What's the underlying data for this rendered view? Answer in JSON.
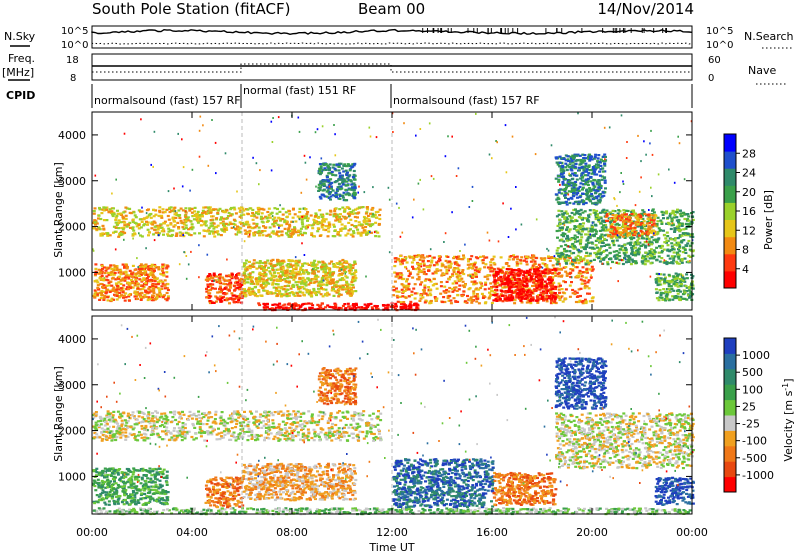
{
  "header": {
    "station": "South Pole Station (fitACF)",
    "beam": "Beam 00",
    "date": "14/Nov/2014"
  },
  "labels": {
    "nsky": "N.Sky",
    "nsky_tick_top": "10^5",
    "nsky_tick_bottom": "10^0",
    "nsearch": "N.Search",
    "nsearch_tick_top": "10^5",
    "nsearch_tick_bottom": "10^0",
    "freq": "Freq.",
    "freq_unit": "[MHz]",
    "freq_tick_top": "18",
    "freq_tick_bottom": "8",
    "nave": "Nave",
    "nave_tick_top": "60",
    "nave_tick_bottom": "0",
    "cpid": "CPID",
    "x_title": "Time UT"
  },
  "cpid_segments": [
    {
      "start_hour": 0.0,
      "end_hour": 6.0,
      "label": "normalsound (fast) 157 RF"
    },
    {
      "start_hour": 6.0,
      "end_hour": 12.0,
      "label": "normal (fast) 151 RF"
    },
    {
      "start_hour": 12.0,
      "end_hour": 24.0,
      "label": "normalsound (fast) 157 RF"
    }
  ],
  "chart_data": [
    {
      "type": "heatmap",
      "name": "power-panel",
      "xlabel": "Time UT",
      "ylabel": "Slant Range [km]",
      "xlim": [
        0,
        24
      ],
      "ylim": [
        180,
        4500
      ],
      "x_ticks": [
        "00:00",
        "04:00",
        "08:00",
        "12:00",
        "16:00",
        "20:00",
        "00:00"
      ],
      "y_ticks": [
        1000,
        2000,
        3000,
        4000
      ],
      "colorbar": {
        "label": "Power [dB]",
        "ticks": [
          "4",
          "8",
          "12",
          "16",
          "20",
          "24",
          "28"
        ],
        "colors": [
          "#0000ff",
          "#1f4fcc",
          "#2f8a6a",
          "#3aa04a",
          "#9ad12b",
          "#e6c619",
          "#f28a12",
          "#ff3a10",
          "#ff0000"
        ]
      },
      "echo_regions": [
        {
          "t0": 0.0,
          "t1": 11.5,
          "r0": 1800,
          "r1": 2450,
          "level": 5,
          "note": "band near 2000 km"
        },
        {
          "t0": 0.0,
          "t1": 3.0,
          "r0": 400,
          "r1": 1200,
          "level": 6
        },
        {
          "t0": 4.5,
          "t1": 6.0,
          "r0": 350,
          "r1": 1000,
          "level": 7
        },
        {
          "t0": 6.0,
          "t1": 10.5,
          "r0": 500,
          "r1": 1300,
          "level": 5
        },
        {
          "t0": 9.0,
          "t1": 10.5,
          "r0": 2600,
          "r1": 3400,
          "level": 2
        },
        {
          "t0": 6.5,
          "t1": 13.0,
          "r0": 200,
          "r1": 350,
          "level": 8
        },
        {
          "t0": 12.0,
          "t1": 20.0,
          "r0": 350,
          "r1": 1400,
          "level": 6
        },
        {
          "t0": 16.0,
          "t1": 18.5,
          "r0": 400,
          "r1": 1100,
          "level": 8
        },
        {
          "t0": 18.5,
          "t1": 24.0,
          "r0": 1200,
          "r1": 2400,
          "level": 3
        },
        {
          "t0": 20.5,
          "t1": 22.5,
          "r0": 1800,
          "r1": 2300,
          "level": 6
        },
        {
          "t0": 18.5,
          "t1": 20.5,
          "r0": 2500,
          "r1": 3600,
          "level": 2
        },
        {
          "t0": 22.5,
          "t1": 24.0,
          "r0": 400,
          "r1": 1000,
          "level": 3
        }
      ]
    },
    {
      "type": "heatmap",
      "name": "velocity-panel",
      "xlabel": "Time UT",
      "ylabel": "Slant Range [km]",
      "xlim": [
        0,
        24
      ],
      "ylim": [
        180,
        4500
      ],
      "x_ticks": [
        "00:00",
        "04:00",
        "08:00",
        "12:00",
        "16:00",
        "20:00",
        "00:00"
      ],
      "y_ticks": [
        1000,
        2000,
        3000,
        4000
      ],
      "colorbar": {
        "label": "Velocity [m s",
        "label_sup": "-1",
        "label_end": "]",
        "ticks": [
          "1000",
          "500",
          "100",
          "25",
          "-25",
          "-100",
          "-500",
          "-1000"
        ],
        "colors": [
          "#1f3fbf",
          "#2a6fa0",
          "#2f8a6a",
          "#3aa04a",
          "#6cc83a",
          "#c8c8c8",
          "#f0a020",
          "#f07818",
          "#e84810",
          "#ff0000"
        ]
      },
      "echo_regions": [
        {
          "t0": 0.0,
          "t1": 11.5,
          "r0": 1800,
          "r1": 2450,
          "level": 5,
          "note": "ground scatter, grey"
        },
        {
          "t0": 0.0,
          "t1": 3.0,
          "r0": 400,
          "r1": 1200,
          "level": 3
        },
        {
          "t0": 4.5,
          "t1": 6.0,
          "r0": 350,
          "r1": 1000,
          "level": 7
        },
        {
          "t0": 6.0,
          "t1": 10.5,
          "r0": 500,
          "r1": 1300,
          "level": 6
        },
        {
          "t0": 9.0,
          "t1": 10.5,
          "r0": 2600,
          "r1": 3400,
          "level": 7
        },
        {
          "t0": 0.0,
          "t1": 24.0,
          "r0": 200,
          "r1": 330,
          "level": 4
        },
        {
          "t0": 12.0,
          "t1": 16.0,
          "r0": 350,
          "r1": 1400,
          "level": 1
        },
        {
          "t0": 16.0,
          "t1": 18.5,
          "r0": 400,
          "r1": 1100,
          "level": 7
        },
        {
          "t0": 18.5,
          "t1": 24.0,
          "r0": 1200,
          "r1": 2400,
          "level": 5
        },
        {
          "t0": 18.5,
          "t1": 20.5,
          "r0": 2500,
          "r1": 3600,
          "level": 0
        },
        {
          "t0": 22.5,
          "t1": 24.0,
          "r0": 400,
          "r1": 1000,
          "level": 0
        }
      ]
    }
  ]
}
